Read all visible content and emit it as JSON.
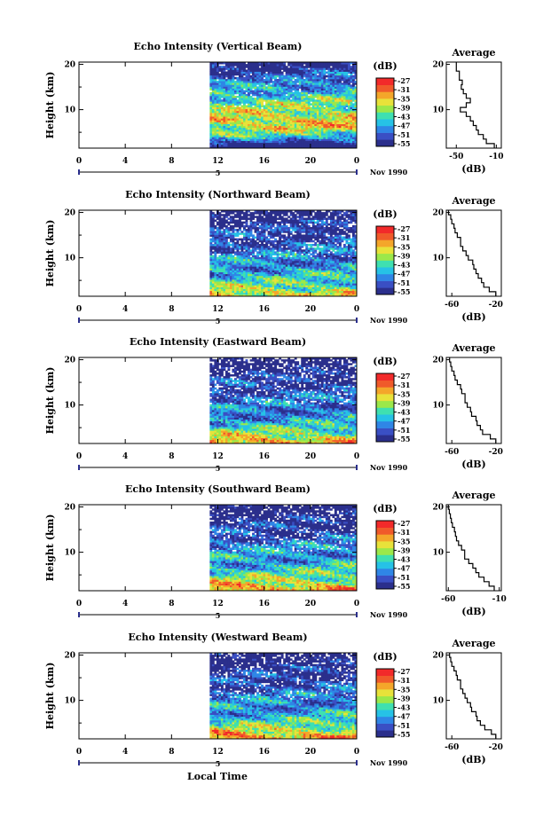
{
  "colors": {
    "palette": [
      "#2b2f8c",
      "#3a4fc4",
      "#2f86e6",
      "#26c2e6",
      "#3fe0b0",
      "#9be84a",
      "#e8e23a",
      "#f4a62a",
      "#f05a2a",
      "#f22a2a"
    ],
    "no_data": "#ffffff"
  },
  "x_axis": {
    "ticks": [
      "0",
      "4",
      "8",
      "12",
      "16",
      "20",
      "0"
    ],
    "date_label": "5",
    "month_label": "Nov 1990",
    "title": "Local Time"
  },
  "colorbar": {
    "unit": "(dB)",
    "ticks": [
      "-27",
      "-31",
      "-35",
      "-39",
      "-43",
      "-47",
      "-51",
      "-55"
    ]
  },
  "average": {
    "title": "Average",
    "xlabel": "(dB)"
  },
  "y_axis": {
    "label": "Height (km)",
    "ticks": [
      "20",
      "10"
    ]
  },
  "chart_data": [
    {
      "type": "heatmap",
      "title": "Echo Intensity (Vertical Beam)",
      "beam": "Vertical",
      "xlabel": "Local Time",
      "ylabel": "Height (km)",
      "x_range_hours": [
        0,
        24
      ],
      "data_start_hour": 11.3,
      "y_range_km": [
        1.5,
        20.5
      ],
      "color_range_db": [
        -55,
        -27
      ],
      "gap_fraction": 0.05,
      "profile_heights_km": [
        2,
        4,
        6,
        8,
        10,
        12,
        14,
        16,
        18,
        20
      ],
      "profile_db": [
        -58,
        -45,
        -38,
        -36,
        -40,
        -42,
        -45,
        -48,
        -52,
        -55
      ],
      "avg_x_ticks": [
        "-50",
        "-10"
      ],
      "avg_x_range_db": [
        -60,
        -5
      ],
      "avg_profile_heights_km": [
        2,
        3,
        4,
        5,
        6,
        7,
        8,
        9,
        10,
        11,
        12,
        13,
        14,
        15,
        16,
        17,
        18,
        19,
        20
      ],
      "avg_profile_db": [
        -12,
        -20,
        -23,
        -28,
        -30,
        -33,
        -36,
        -40,
        -46,
        -40,
        -36,
        -40,
        -43,
        -45,
        -44,
        -47,
        -47,
        -50,
        -50
      ]
    },
    {
      "type": "heatmap",
      "title": "Echo Intensity (Northward Beam)",
      "beam": "Northward",
      "xlabel": "Local Time",
      "ylabel": "Height (km)",
      "x_range_hours": [
        0,
        24
      ],
      "data_start_hour": 11.3,
      "y_range_km": [
        1.5,
        20.5
      ],
      "color_range_db": [
        -55,
        -27
      ],
      "gap_fraction": 0.18,
      "profile_heights_km": [
        2,
        4,
        6,
        8,
        10,
        12,
        14,
        16,
        18,
        20
      ],
      "profile_db": [
        -36,
        -42,
        -45,
        -47,
        -48,
        -50,
        -51,
        -52,
        -54,
        -56
      ],
      "avg_x_ticks": [
        "-60",
        "-20"
      ],
      "avg_x_range_db": [
        -65,
        -15
      ],
      "avg_profile_heights_km": [
        2,
        3,
        4,
        5,
        6,
        7,
        8,
        9,
        10,
        11,
        12,
        13,
        14,
        15,
        16,
        17,
        18,
        19,
        20
      ],
      "avg_profile_db": [
        -20,
        -26,
        -31,
        -33,
        -36,
        -38,
        -40,
        -41,
        -45,
        -47,
        -50,
        -52,
        -52,
        -55,
        -57,
        -58,
        -60,
        -61,
        -63
      ]
    },
    {
      "type": "heatmap",
      "title": "Echo Intensity (Eastward Beam)",
      "beam": "Eastward",
      "xlabel": "Local Time",
      "ylabel": "Height (km)",
      "x_range_hours": [
        0,
        24
      ],
      "data_start_hour": 11.3,
      "y_range_km": [
        1.5,
        20.5
      ],
      "color_range_db": [
        -55,
        -27
      ],
      "gap_fraction": 0.2,
      "profile_heights_km": [
        2,
        4,
        6,
        8,
        10,
        12,
        14,
        16,
        18,
        20
      ],
      "profile_db": [
        -34,
        -41,
        -46,
        -48,
        -49,
        -50,
        -51,
        -53,
        -55,
        -57
      ],
      "avg_x_ticks": [
        "-60",
        "-20"
      ],
      "avg_x_range_db": [
        -65,
        -15
      ],
      "avg_profile_heights_km": [
        2,
        3,
        4,
        5,
        6,
        7,
        8,
        9,
        10,
        11,
        12,
        13,
        14,
        15,
        16,
        17,
        18,
        19,
        20
      ],
      "avg_profile_db": [
        -20,
        -25,
        -32,
        -34,
        -37,
        -38,
        -42,
        -43,
        -46,
        -48,
        -48,
        -51,
        -52,
        -55,
        -57,
        -58,
        -60,
        -61,
        -62
      ]
    },
    {
      "type": "heatmap",
      "title": "Echo Intensity (Southward Beam)",
      "beam": "Southward",
      "xlabel": "Local Time",
      "ylabel": "Height (km)",
      "x_range_hours": [
        0,
        24
      ],
      "data_start_hour": 11.3,
      "y_range_km": [
        1.5,
        20.5
      ],
      "color_range_db": [
        -55,
        -27
      ],
      "gap_fraction": 0.16,
      "profile_heights_km": [
        2,
        4,
        6,
        8,
        10,
        12,
        14,
        16,
        18,
        20
      ],
      "profile_db": [
        -33,
        -40,
        -44,
        -46,
        -47,
        -49,
        -51,
        -53,
        -55,
        -57
      ],
      "avg_x_ticks": [
        "-60",
        "-10"
      ],
      "avg_x_range_db": [
        -62,
        -8
      ],
      "avg_profile_heights_km": [
        2,
        3,
        4,
        5,
        6,
        7,
        8,
        9,
        10,
        11,
        12,
        13,
        14,
        15,
        16,
        17,
        18,
        19,
        20
      ],
      "avg_profile_db": [
        -15,
        -20,
        -25,
        -30,
        -33,
        -36,
        -40,
        -44,
        -44,
        -47,
        -50,
        -52,
        -53,
        -54,
        -56,
        -57,
        -58,
        -59,
        -60
      ]
    },
    {
      "type": "heatmap",
      "title": "Echo Intensity (Westward Beam)",
      "beam": "Westward",
      "xlabel": "Local Time",
      "ylabel": "Height (km)",
      "x_range_hours": [
        0,
        24
      ],
      "data_start_hour": 11.3,
      "y_range_km": [
        1.5,
        20.5
      ],
      "color_range_db": [
        -55,
        -27
      ],
      "gap_fraction": 0.17,
      "profile_heights_km": [
        2,
        4,
        6,
        8,
        10,
        12,
        14,
        16,
        18,
        20
      ],
      "profile_db": [
        -33,
        -40,
        -45,
        -47,
        -48,
        -50,
        -51,
        -53,
        -55,
        -57
      ],
      "avg_x_ticks": [
        "-60",
        "-20"
      ],
      "avg_x_range_db": [
        -65,
        -15
      ],
      "avg_profile_heights_km": [
        2,
        3,
        4,
        5,
        6,
        7,
        8,
        9,
        10,
        11,
        12,
        13,
        14,
        15,
        16,
        17,
        18,
        19,
        20
      ],
      "avg_profile_db": [
        -20,
        -24,
        -30,
        -34,
        -37,
        -38,
        -42,
        -43,
        -46,
        -48,
        -50,
        -52,
        -52,
        -55,
        -56,
        -58,
        -60,
        -61,
        -62
      ]
    }
  ]
}
